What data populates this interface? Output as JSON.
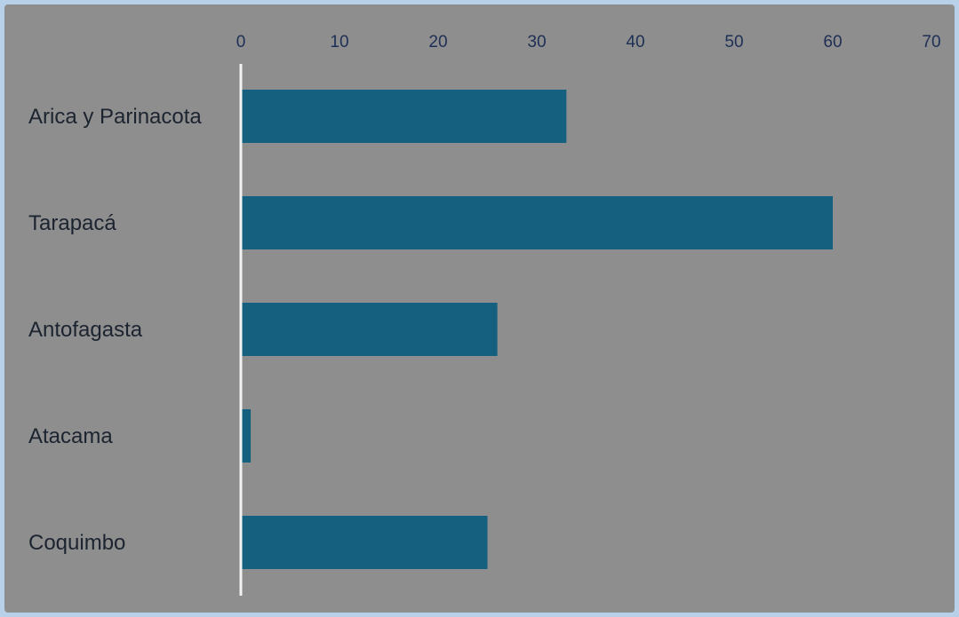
{
  "chart_data": {
    "type": "bar",
    "orientation": "horizontal",
    "categories": [
      "Arica y Parinacota",
      "Tarapacá",
      "Antofagasta",
      "Atacama",
      "Coquimbo"
    ],
    "values": [
      33,
      60,
      26,
      1,
      25
    ],
    "xticks": [
      "0",
      "10",
      "20",
      "30",
      "40",
      "50",
      "60",
      "70"
    ],
    "xlim": [
      0,
      70
    ],
    "x_axis_position": "top",
    "grid": false,
    "legend": "none",
    "colors": {
      "bar": "#16607f",
      "background": "#8e8e8e",
      "frame": "#b8d0e8",
      "baseline": "#f2f2f2",
      "tick_text": "#1e2f55",
      "category_text": "#1c2430"
    }
  }
}
